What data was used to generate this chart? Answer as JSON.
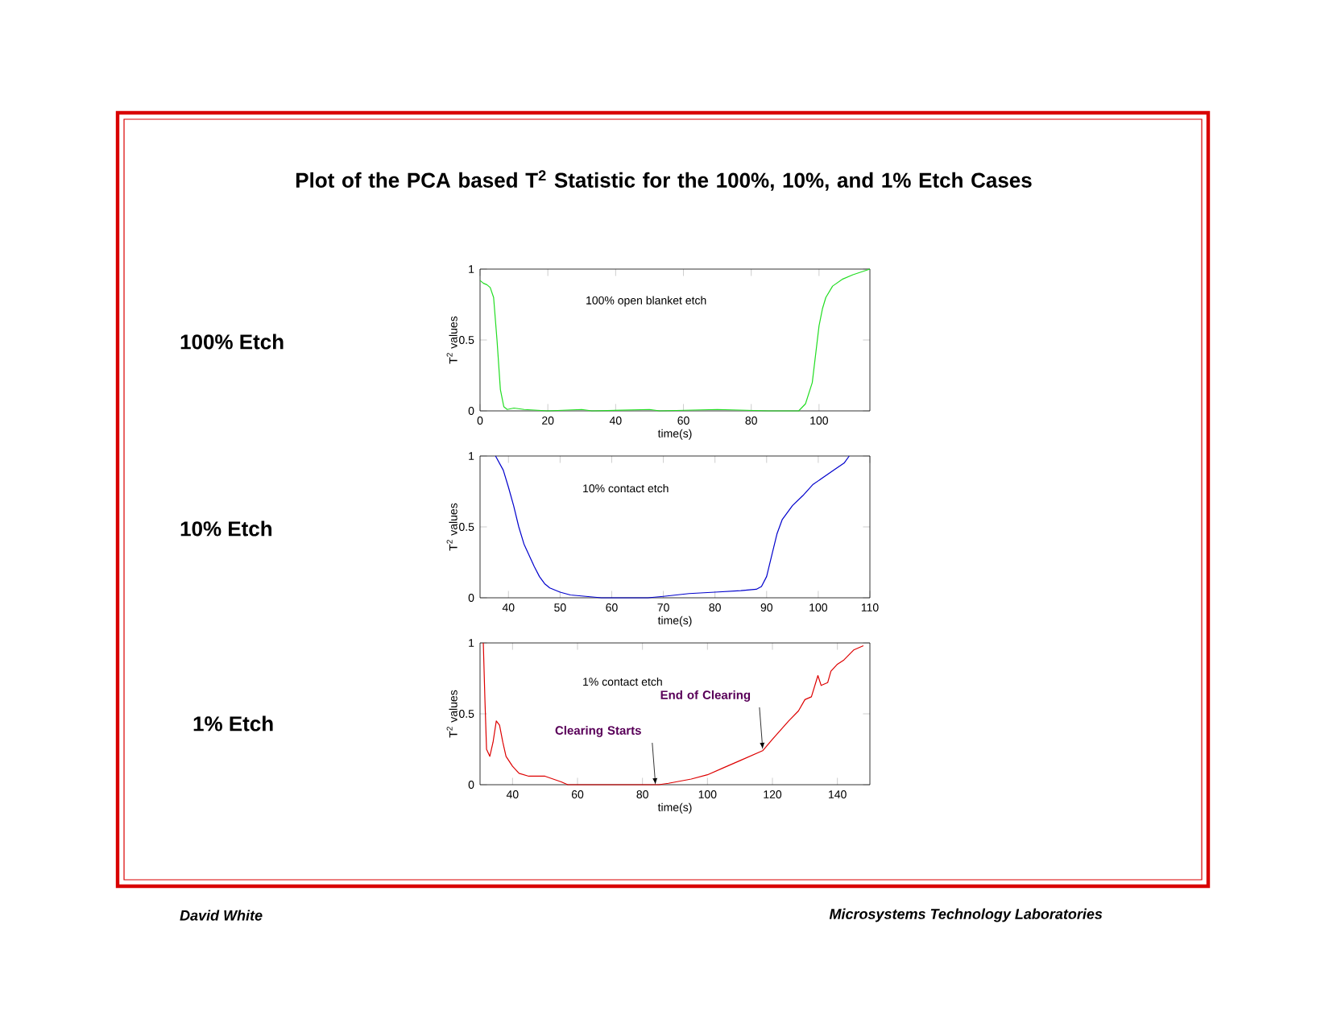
{
  "chart_data": [
    {
      "type": "line",
      "xlabel": "time(s)",
      "ylabel": "T$^{2}$ values",
      "color": "#22dd22",
      "xlim": [
        0,
        115
      ],
      "ylim": [
        0,
        1
      ],
      "xticks": [
        0,
        20,
        40,
        60,
        80,
        100
      ],
      "yticks": [
        0,
        0.5,
        1
      ],
      "annotations": [
        "100% Etch",
        "Plot of the PCA based T$^{2}$ Statistic for the 100%, 10%, and 1% Etch Cases",
        "100% open blanket etch"
      ],
      "x": [
        0,
        1,
        2,
        3,
        4,
        5,
        6,
        7,
        8,
        10,
        13,
        20,
        30,
        33,
        50,
        53,
        70,
        85,
        94,
        96,
        98,
        99,
        100,
        101,
        102,
        104,
        107,
        110,
        115
      ],
      "values": [
        0.92,
        0.9,
        0.89,
        0.87,
        0.8,
        0.5,
        0.15,
        0.03,
        0.01,
        0.02,
        0.01,
        0,
        0.01,
        0,
        0.01,
        0,
        0.01,
        0,
        0,
        0.05,
        0.2,
        0.4,
        0.6,
        0.72,
        0.8,
        0.88,
        0.93,
        0.96,
        1.0
      ]
    },
    {
      "type": "line",
      "xlabel": "time(s)",
      "ylabel": "T$^{2}$ values",
      "color": "#0000cc",
      "xlim": [
        34.5,
        110
      ],
      "ylim": [
        0,
        1
      ],
      "xticks": [
        40,
        50,
        60,
        70,
        80,
        90,
        100,
        110
      ],
      "yticks": [
        0,
        0.5,
        1
      ],
      "annotations": [
        "10% Etch",
        "10% contact etch"
      ],
      "x": [
        37.5,
        39,
        40,
        41,
        42,
        43,
        44,
        45,
        46,
        47,
        48,
        50,
        52,
        55,
        58,
        67,
        70,
        75,
        80,
        85,
        88,
        89,
        90,
        91,
        92,
        93,
        95,
        97,
        99,
        101,
        103,
        105,
        106
      ],
      "values": [
        1.0,
        0.9,
        0.78,
        0.65,
        0.5,
        0.38,
        0.3,
        0.22,
        0.15,
        0.1,
        0.07,
        0.04,
        0.02,
        0.01,
        0,
        0,
        0.01,
        0.03,
        0.04,
        0.05,
        0.06,
        0.08,
        0.15,
        0.3,
        0.45,
        0.55,
        0.65,
        0.72,
        0.8,
        0.85,
        0.9,
        0.95,
        1.0
      ]
    },
    {
      "type": "line",
      "xlabel": "time(s)",
      "ylabel": "T$^{2}$ values",
      "color": "#dd0000",
      "xlim": [
        30,
        150
      ],
      "ylim": [
        0,
        1
      ],
      "xticks": [
        40,
        60,
        80,
        100,
        120,
        140
      ],
      "yticks": [
        0,
        0.5,
        1
      ],
      "annotations": [
        "1% Etch",
        "1% contact etch",
        {
          "text": "Clearing Starts",
          "x": 84,
          "y": 0
        },
        {
          "text": "End of Clearing",
          "x": 117,
          "y": 0.25
        },
        "David White",
        "Microsystems Technology Laboratories"
      ],
      "x": [
        31,
        31.5,
        32,
        33,
        34,
        35,
        36,
        37,
        38,
        40,
        42,
        45,
        50,
        55,
        57,
        85,
        88,
        95,
        100,
        105,
        110,
        117,
        120,
        125,
        128,
        130,
        132,
        134,
        135,
        137,
        138,
        140,
        142,
        145,
        148
      ],
      "values": [
        1.0,
        0.6,
        0.25,
        0.2,
        0.3,
        0.45,
        0.42,
        0.3,
        0.2,
        0.13,
        0.08,
        0.06,
        0.06,
        0.02,
        0,
        0,
        0.01,
        0.04,
        0.07,
        0.12,
        0.17,
        0.24,
        0.32,
        0.45,
        0.52,
        0.6,
        0.62,
        0.77,
        0.7,
        0.72,
        0.8,
        0.85,
        0.88,
        0.95,
        0.98
      ]
    }
  ]
}
